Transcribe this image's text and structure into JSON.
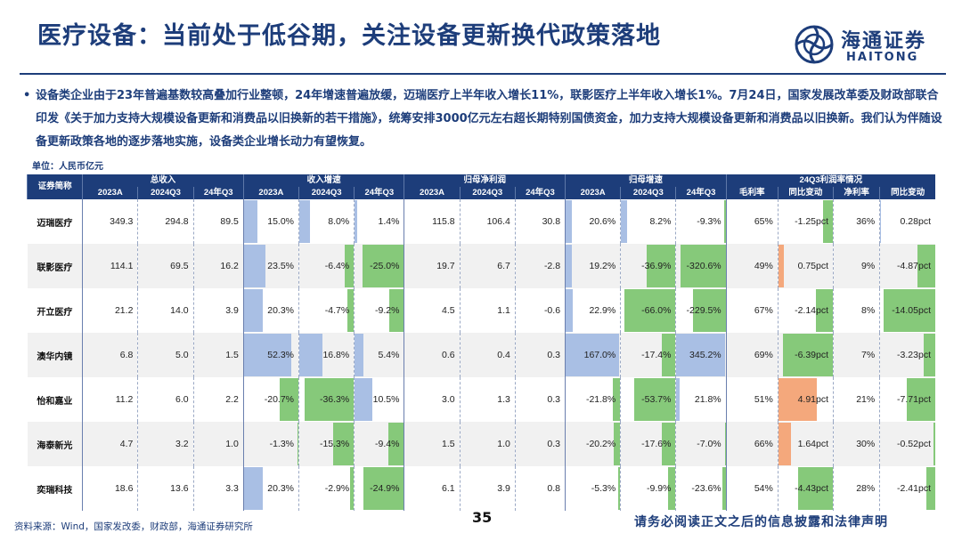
{
  "page": {
    "title": "医疗设备：当前处于低谷期，关注设备更新换代政策落地",
    "paragraph": "设备类企业由于23年普遍基数较高叠加行业整顿，24年增速普遍放缓，迈瑞医疗上半年收入增长11%，联影医疗上半年收入增长1%。7月24日，国家发展改革委及财政部联合印发《关于加力支持大规模设备更新和消费品以旧换新的若干措施》，统筹安排3000亿元左右超长期特别国债资金，加力支持大规模设备更新和消费品以旧换新。我们认为伴随设备更新政策各地的逐步落地实施，设备类企业增长动力有望恢复。",
    "bullet": "•",
    "unit": "单位：人民币亿元",
    "source": "资料来源：Wind，国家发改委，财政部，海通证券研究所",
    "page_number": "35",
    "disclaimer": "请务必阅读正文之后的信息披露和法律声明"
  },
  "logo": {
    "cn": "海通证券",
    "en": "HAITONG",
    "brand_color": "#1d3d7a"
  },
  "colors": {
    "header_bg": "#1d3d7a",
    "positive_bar": "#a9bfe4",
    "negative_bar": "#86c97a",
    "margin_change_positive_bar": "#f4a87c"
  },
  "table": {
    "group_headers": [
      "证券简称",
      "总收入",
      "收入增速",
      "归母净利润",
      "归母增速",
      "24Q3利润率情况"
    ],
    "sub_headers": [
      "2023A",
      "2024Q3",
      "24年Q3",
      "2023A",
      "2024Q3",
      "24年Q3",
      "2023A",
      "2024Q3",
      "24年Q3",
      "2023A",
      "2024Q3",
      "24年Q3",
      "毛利率",
      "同比变动",
      "净利率",
      "同比变动"
    ],
    "rows": [
      {
        "name": "迈瑞医疗",
        "cells": [
          "349.3",
          "294.8",
          "89.5",
          "15.0%",
          "8.0%",
          "1.4%",
          "115.8",
          "106.4",
          "30.8",
          "20.6%",
          "8.2%",
          "-9.3%",
          "65%",
          "-1.25pct",
          "36%",
          "0.28pct"
        ]
      },
      {
        "name": "联影医疗",
        "cells": [
          "114.1",
          "69.5",
          "16.2",
          "23.5%",
          "-6.4%",
          "-25.0%",
          "19.7",
          "6.7",
          "-2.8",
          "19.2%",
          "-36.9%",
          "-320.6%",
          "49%",
          "0.75pct",
          "9%",
          "-4.87pct"
        ]
      },
      {
        "name": "开立医疗",
        "cells": [
          "21.2",
          "14.0",
          "3.9",
          "20.3%",
          "-4.7%",
          "-9.2%",
          "4.5",
          "1.1",
          "-0.6",
          "22.9%",
          "-66.0%",
          "-229.5%",
          "67%",
          "-2.14pct",
          "8%",
          "-14.05pct"
        ]
      },
      {
        "name": "澳华内镜",
        "cells": [
          "6.8",
          "5.0",
          "1.5",
          "52.3%",
          "16.8%",
          "5.4%",
          "0.6",
          "0.4",
          "0.3",
          "167.0%",
          "-17.4%",
          "345.2%",
          "69%",
          "-6.39pct",
          "7%",
          "-3.23pct"
        ]
      },
      {
        "name": "怡和嘉业",
        "cells": [
          "11.2",
          "6.0",
          "2.2",
          "-20.7%",
          "-36.3%",
          "10.5%",
          "3.0",
          "1.3",
          "0.3",
          "-21.8%",
          "-53.7%",
          "21.8%",
          "51%",
          "4.91pct",
          "21%",
          "-7.71pct"
        ]
      },
      {
        "name": "海泰新光",
        "cells": [
          "4.7",
          "3.2",
          "1.0",
          "-1.3%",
          "-15.3%",
          "-9.4%",
          "1.5",
          "1.0",
          "0.3",
          "-20.2%",
          "-17.6%",
          "-7.0%",
          "66%",
          "1.64pct",
          "30%",
          "-0.52pct"
        ]
      },
      {
        "name": "奕瑞科技",
        "cells": [
          "18.6",
          "13.6",
          "3.3",
          "20.3%",
          "-2.9%",
          "-24.9%",
          "6.1",
          "3.9",
          "0.8",
          "-5.3%",
          "-9.9%",
          "-23.6%",
          "54%",
          "-4.43pct",
          "28%",
          "-2.41pct"
        ]
      }
    ]
  }
}
